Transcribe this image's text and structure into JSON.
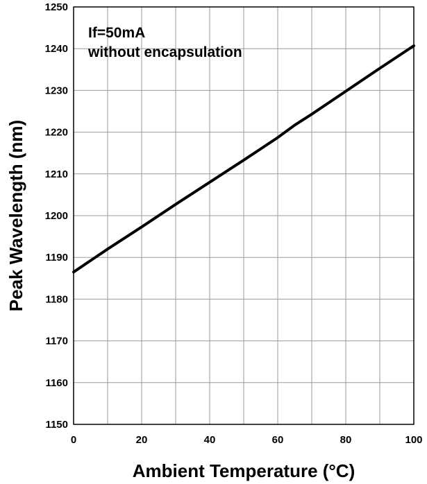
{
  "chart_data": {
    "type": "line",
    "xlabel": "Ambient Temperature (°C)",
    "ylabel": "Peak Wavelength (nm)",
    "xlim": [
      0,
      100
    ],
    "ylim": [
      1150,
      1250
    ],
    "x_ticks": [
      0,
      20,
      40,
      60,
      80,
      100
    ],
    "y_ticks": [
      1150,
      1160,
      1170,
      1180,
      1190,
      1200,
      1210,
      1220,
      1230,
      1240,
      1250
    ],
    "x_tick_labels": [
      "0",
      "20",
      "40",
      "60",
      "80",
      "100"
    ],
    "y_tick_labels": [
      "1150",
      "1160",
      "1170",
      "1180",
      "1190",
      "1200",
      "1210",
      "1220",
      "1230",
      "1240",
      "1250"
    ],
    "grid": true,
    "annotations": [
      "If=50mA",
      "without encapsulation"
    ],
    "series": [
      {
        "x": [
          0,
          10,
          20,
          30,
          40,
          50,
          60,
          65,
          70,
          80,
          90,
          100
        ],
        "y": [
          1186.5,
          1192.0,
          1197.3,
          1202.7,
          1208.0,
          1213.3,
          1218.7,
          1221.7,
          1224.3,
          1229.8,
          1235.3,
          1240.7
        ]
      }
    ]
  }
}
